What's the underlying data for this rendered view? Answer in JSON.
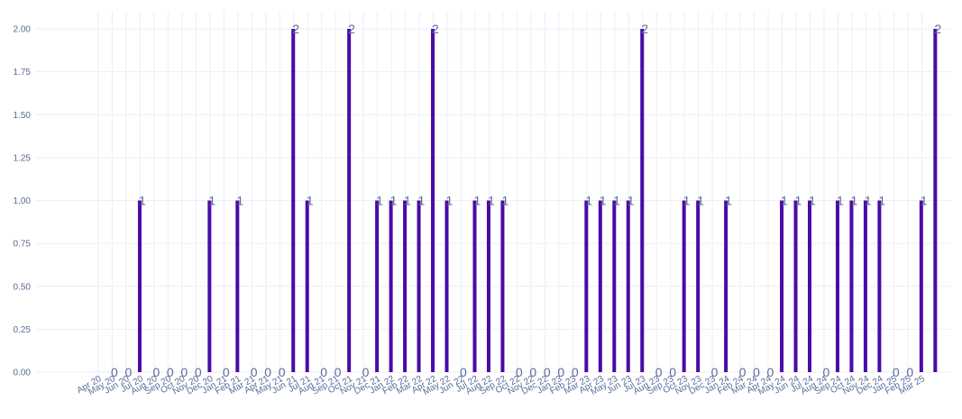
{
  "chart_data": {
    "type": "bar",
    "title": "",
    "xlabel": "",
    "ylabel": "",
    "ylim": [
      0,
      2.1
    ],
    "yticks": [
      0,
      0.25,
      0.5,
      0.75,
      1,
      1.25,
      1.5,
      1.75,
      2
    ],
    "ytick_labels": [
      "0.00",
      "0.25",
      "0.50",
      "0.75",
      "1.00",
      "1.25",
      "1.50",
      "1.75",
      "2.00"
    ],
    "grid": true,
    "bar_color": "#4a0aa8",
    "grid_color": "#ebeef8",
    "label_color": "#5b6a9a",
    "categories": [
      "Apr 20",
      "May 20",
      "Jun 20",
      "Jul 20",
      "Aug 20",
      "Sep 20",
      "Oct 20",
      "Nov 20",
      "Dec 20",
      "Jan 21",
      "Feb 21",
      "Mar 21",
      "Apr 21",
      "May 21",
      "Jun 21",
      "Jul 21",
      "Aug 21",
      "Sep 21",
      "Oct 21",
      "Nov 21",
      "Dec 21",
      "Jan 22",
      "Feb 22",
      "Mar 22",
      "Apr 22",
      "May 22",
      "Jun 22",
      "Jul 22",
      "Aug 22",
      "Sep 22",
      "Oct 22",
      "Nov 22",
      "Dec 22",
      "Jan 23",
      "Feb 23",
      "Mar 23",
      "Apr 23",
      "May 23",
      "Jun 23",
      "Jul 23",
      "Aug 23",
      "Sep 23",
      "Oct 23",
      "Nov 23",
      "Dec 23",
      "Jan 24",
      "Feb 24",
      "Mar 24",
      "Apr 24",
      "May 24",
      "Jun 24",
      "Jul 24",
      "Aug 24",
      "Sep 24",
      "Oct 24",
      "Nov 24",
      "Dec 24",
      "Jan 25",
      "Feb 25",
      "Mar 25"
    ],
    "values": [
      0,
      0,
      1,
      0,
      0,
      0,
      0,
      1,
      0,
      1,
      0,
      0,
      0,
      2,
      1,
      0,
      0,
      2,
      0,
      1,
      1,
      1,
      1,
      2,
      1,
      0,
      1,
      1,
      1,
      0,
      0,
      0,
      0,
      0,
      1,
      1,
      1,
      1,
      2,
      0,
      0,
      1,
      1,
      0,
      1,
      0,
      0,
      0,
      1,
      1,
      1,
      0,
      1,
      1,
      1,
      1,
      0,
      0,
      1,
      2
    ],
    "data_labels": [
      "0",
      "0",
      "1",
      "0",
      "0",
      "0",
      "0",
      "1",
      "0",
      "1",
      "0",
      "0",
      "0",
      "2",
      "1",
      "0",
      "0",
      "2",
      "0",
      "1",
      "1",
      "1",
      "1",
      "2",
      "1",
      "0",
      "1",
      "1",
      "1",
      "0",
      "0",
      "0",
      "0",
      "0",
      "1",
      "1",
      "1",
      "1",
      "2",
      "0",
      "0",
      "1",
      "1",
      "0",
      "1",
      "0",
      "0",
      "0",
      "1",
      "1",
      "1",
      "0",
      "1",
      "1",
      "1",
      "1",
      "0",
      "0",
      "1",
      "2"
    ]
  }
}
